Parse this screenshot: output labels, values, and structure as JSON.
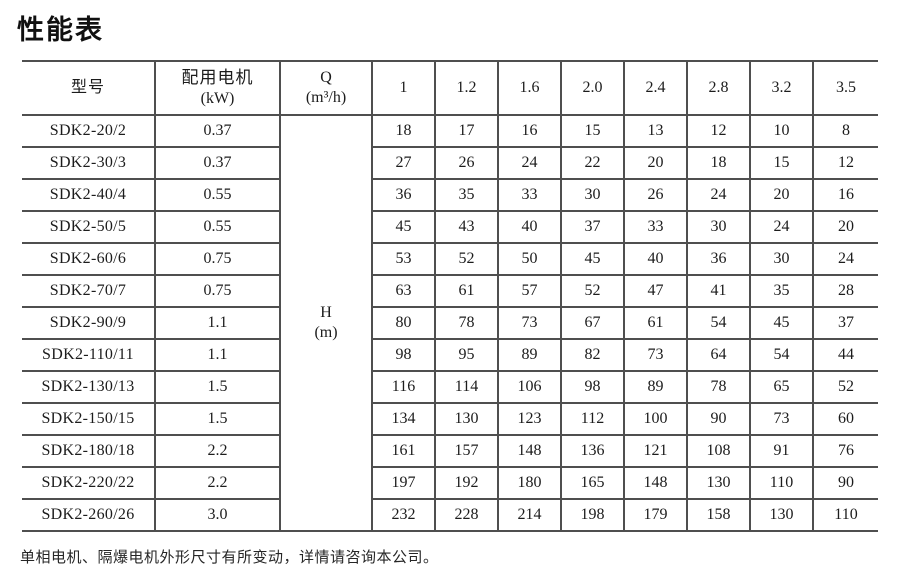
{
  "page": {
    "title": "性能表",
    "footnote": "单相电机、隔爆电机外形尺寸有所变动，详情请咨询本公司。"
  },
  "table": {
    "headers": {
      "model": "型号",
      "motor_label": "配用电机",
      "motor_unit": "(kW)",
      "q_label": "Q",
      "q_unit": "(m³/h)",
      "q_values": [
        "1",
        "1.2",
        "1.6",
        "2.0",
        "2.4",
        "2.8",
        "3.2",
        "3.5"
      ],
      "h_label": "H",
      "h_unit": "(m)"
    },
    "rows": [
      {
        "model": "SDK2-20/2",
        "kw": "0.37",
        "h": [
          "18",
          "17",
          "16",
          "15",
          "13",
          "12",
          "10",
          "8"
        ]
      },
      {
        "model": "SDK2-30/3",
        "kw": "0.37",
        "h": [
          "27",
          "26",
          "24",
          "22",
          "20",
          "18",
          "15",
          "12"
        ]
      },
      {
        "model": "SDK2-40/4",
        "kw": "0.55",
        "h": [
          "36",
          "35",
          "33",
          "30",
          "26",
          "24",
          "20",
          "16"
        ]
      },
      {
        "model": "SDK2-50/5",
        "kw": "0.55",
        "h": [
          "45",
          "43",
          "40",
          "37",
          "33",
          "30",
          "24",
          "20"
        ]
      },
      {
        "model": "SDK2-60/6",
        "kw": "0.75",
        "h": [
          "53",
          "52",
          "50",
          "45",
          "40",
          "36",
          "30",
          "24"
        ]
      },
      {
        "model": "SDK2-70/7",
        "kw": "0.75",
        "h": [
          "63",
          "61",
          "57",
          "52",
          "47",
          "41",
          "35",
          "28"
        ]
      },
      {
        "model": "SDK2-90/9",
        "kw": "1.1",
        "h": [
          "80",
          "78",
          "73",
          "67",
          "61",
          "54",
          "45",
          "37"
        ]
      },
      {
        "model": "SDK2-110/11",
        "kw": "1.1",
        "h": [
          "98",
          "95",
          "89",
          "82",
          "73",
          "64",
          "54",
          "44"
        ]
      },
      {
        "model": "SDK2-130/13",
        "kw": "1.5",
        "h": [
          "116",
          "114",
          "106",
          "98",
          "89",
          "78",
          "65",
          "52"
        ]
      },
      {
        "model": "SDK2-150/15",
        "kw": "1.5",
        "h": [
          "134",
          "130",
          "123",
          "112",
          "100",
          "90",
          "73",
          "60"
        ]
      },
      {
        "model": "SDK2-180/18",
        "kw": "2.2",
        "h": [
          "161",
          "157",
          "148",
          "136",
          "121",
          "108",
          "91",
          "76"
        ]
      },
      {
        "model": "SDK2-220/22",
        "kw": "2.2",
        "h": [
          "197",
          "192",
          "180",
          "165",
          "148",
          "130",
          "110",
          "90"
        ]
      },
      {
        "model": "SDK2-260/26",
        "kw": "3.0",
        "h": [
          "232",
          "228",
          "214",
          "198",
          "179",
          "158",
          "130",
          "110"
        ]
      }
    ]
  }
}
